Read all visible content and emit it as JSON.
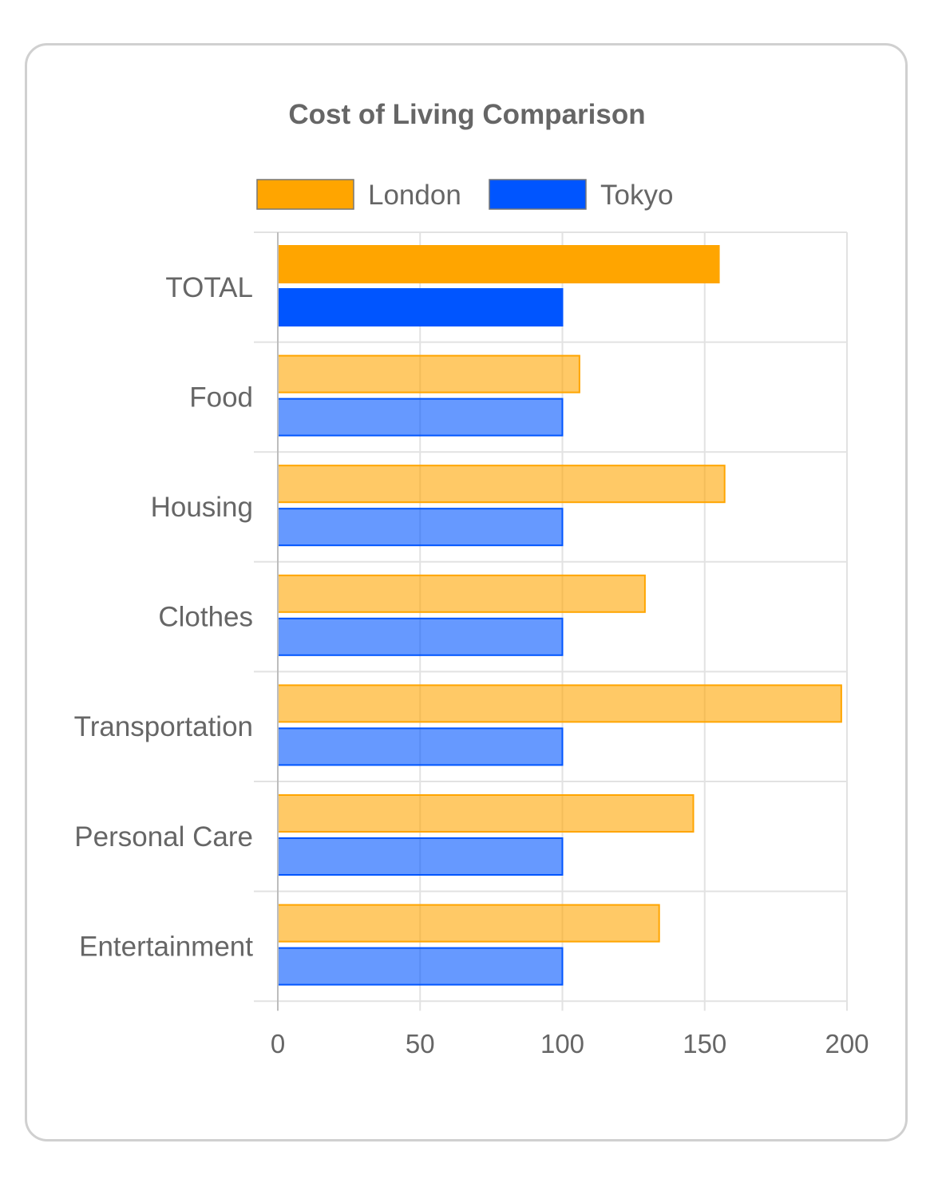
{
  "chart_data": {
    "type": "bar",
    "orientation": "horizontal",
    "title": "Cost of Living Comparison",
    "categories": [
      "TOTAL",
      "Food",
      "Housing",
      "Clothes",
      "Transportation",
      "Personal Care",
      "Entertainment"
    ],
    "series": [
      {
        "name": "London",
        "color": "#ffa500",
        "values": [
          155,
          106,
          157,
          129,
          198,
          146,
          134
        ]
      },
      {
        "name": "Tokyo",
        "color": "#0055ff",
        "values": [
          100,
          100,
          100,
          100,
          100,
          100,
          100
        ]
      }
    ],
    "highlight_category": "TOTAL",
    "xlim": [
      0,
      200
    ],
    "x_ticks": [
      "0",
      "50",
      "100",
      "150",
      "200"
    ],
    "grid": true,
    "legend_position": "top"
  }
}
